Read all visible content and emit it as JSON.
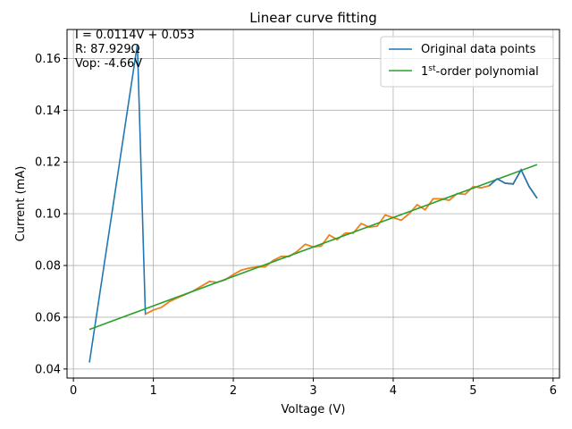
{
  "chart_data": {
    "type": "line",
    "title": "Linear curve fitting",
    "xlabel": "Voltage (V)",
    "ylabel": "Current (mA)",
    "xlim": [
      -0.08,
      6.08
    ],
    "ylim": [
      0.0365,
      0.1712
    ],
    "xticks": [
      0,
      1,
      2,
      3,
      4,
      5,
      6
    ],
    "yticks": [
      0.04,
      0.06,
      0.08,
      0.1,
      0.12,
      0.14,
      0.16
    ],
    "xtick_labels": [
      "0",
      "1",
      "2",
      "3",
      "4",
      "5",
      "6"
    ],
    "ytick_labels": [
      "0.04",
      "0.06",
      "0.08",
      "0.10",
      "0.12",
      "0.14",
      "0.16"
    ],
    "grid": true,
    "legend_position": "top-right",
    "annotations": [
      "I = 0.0114V + 0.053",
      "R: 87.929Ω",
      "Vop: -4.66V"
    ],
    "series": [
      {
        "name": "Original data points",
        "color": "#1f77b4",
        "x": [
          0.2,
          0.8,
          0.9,
          1.0,
          1.1,
          1.2,
          1.3,
          1.4,
          1.5,
          1.6,
          1.7,
          1.8,
          1.9,
          2.0,
          2.1,
          2.2,
          2.3,
          2.4,
          2.5,
          2.6,
          2.7,
          2.8,
          2.9,
          3.0,
          3.1,
          3.2,
          3.3,
          3.4,
          3.5,
          3.6,
          3.7,
          3.8,
          3.9,
          4.0,
          4.1,
          4.2,
          4.3,
          4.4,
          4.5,
          4.6,
          4.7,
          4.8,
          4.9,
          5.0,
          5.1,
          5.2,
          5.3,
          5.4,
          5.5,
          5.6,
          5.7,
          5.8
        ],
        "y": [
          0.0425,
          0.1655,
          0.0612,
          0.0628,
          0.0638,
          0.066,
          0.0675,
          0.0688,
          0.0702,
          0.072,
          0.0738,
          0.0735,
          0.0745,
          0.0765,
          0.0782,
          0.079,
          0.0795,
          0.0795,
          0.082,
          0.0835,
          0.0835,
          0.0855,
          0.0882,
          0.0872,
          0.0875,
          0.0918,
          0.09,
          0.0925,
          0.0925,
          0.0962,
          0.0948,
          0.0952,
          0.0995,
          0.0985,
          0.0975,
          0.1,
          0.1035,
          0.1015,
          0.1058,
          0.1058,
          0.1052,
          0.1078,
          0.1075,
          0.1105,
          0.11,
          0.1108,
          0.1135,
          0.1118,
          0.1115,
          0.117,
          0.1105,
          0.106
        ]
      },
      {
        "name": "1st-order polynomial",
        "name_parts": [
          "1",
          "st",
          "-order polynomial"
        ],
        "color": "#2ca02c",
        "x": [
          0.2,
          5.8
        ],
        "y": [
          0.0553,
          0.119
        ]
      }
    ],
    "overlay_color": "#ff7f0e"
  }
}
